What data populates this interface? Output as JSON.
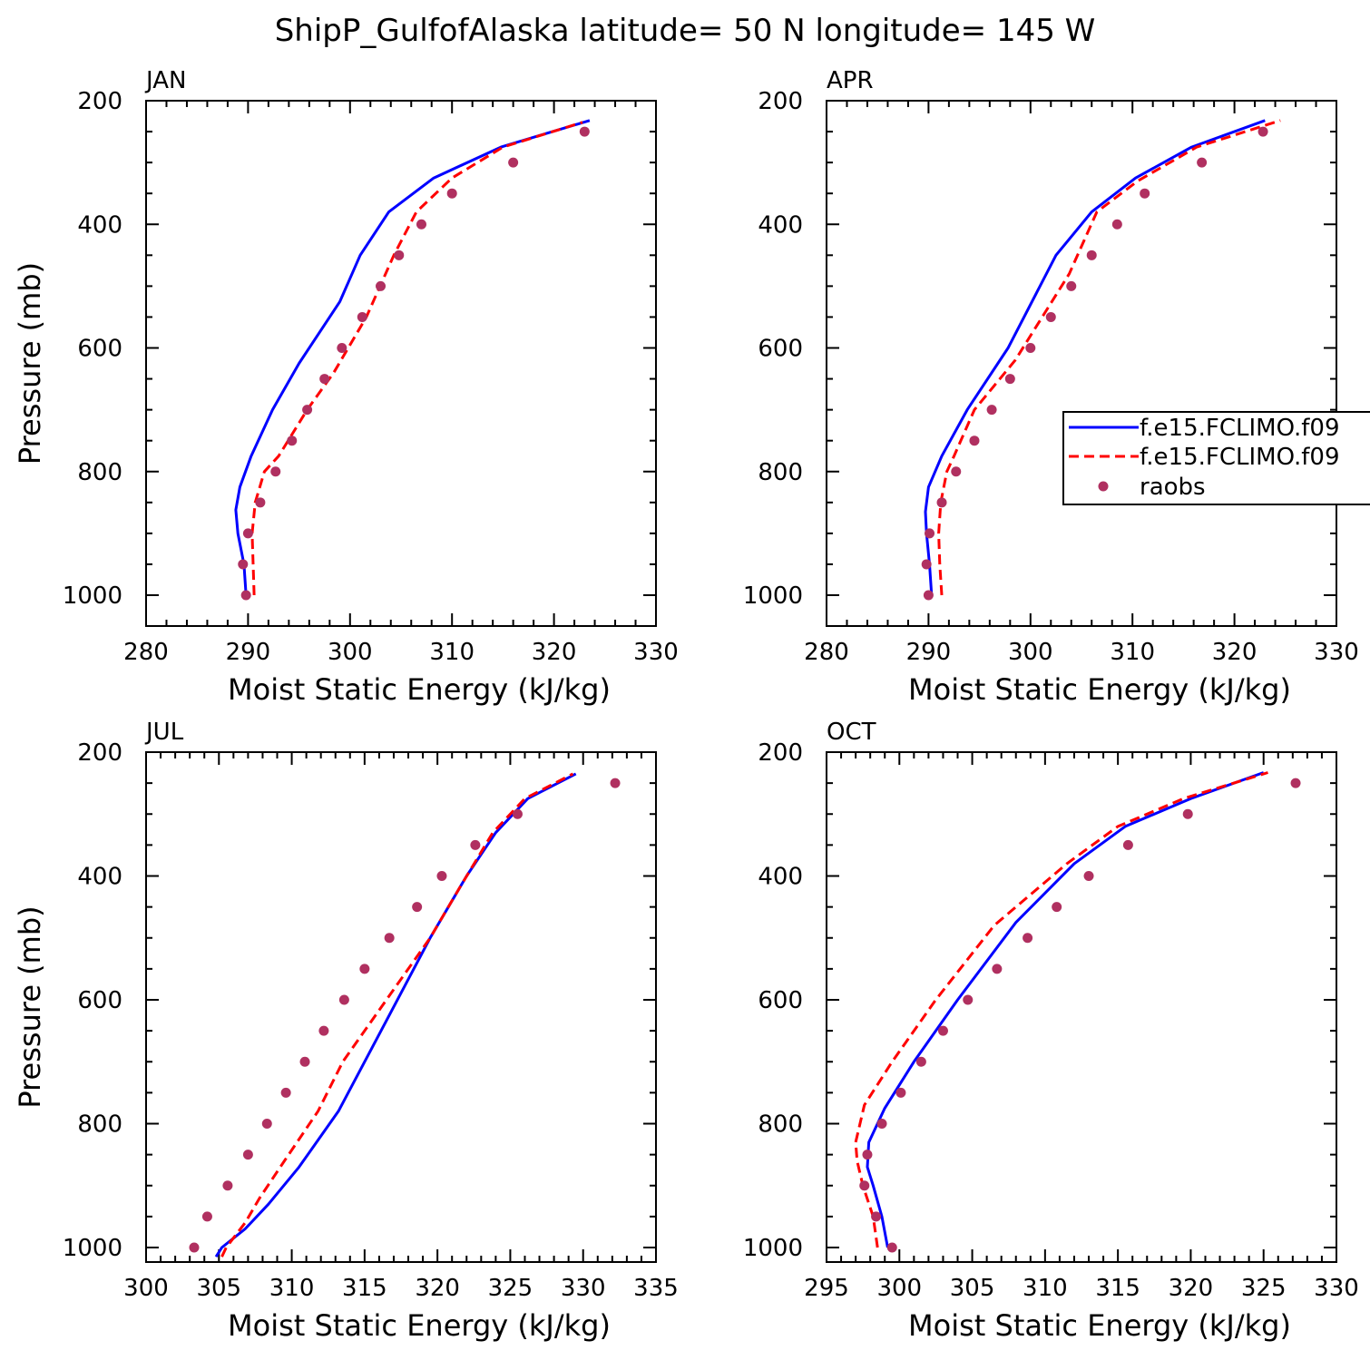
{
  "figure": {
    "title": "ShipP_GulfofAlaska  latitude= 50 N longitude= 145 W"
  },
  "colors": {
    "series_blue": "#0000ff",
    "series_red": "#ff0000",
    "raobs": "#b03060",
    "axes": "#000000"
  },
  "legend": {
    "entries": [
      "f.e15.FCLIMO.f09",
      "f.e15.FCLIMO.f09",
      "raobs"
    ]
  },
  "chart_data": [
    {
      "type": "line",
      "panel_label": "JAN",
      "xlabel": "Moist Static Energy (kJ/kg)",
      "ylabel": "Pressure (mb)",
      "xlim": [
        280,
        330
      ],
      "ylim": [
        1025,
        200
      ],
      "y_reversed": true,
      "xticks": [
        280,
        290,
        300,
        310,
        320,
        330
      ],
      "yticks": [
        200,
        400,
        600,
        800,
        1000
      ],
      "grid": false,
      "series": [
        {
          "style": "solid",
          "color": "blue",
          "x": [
            289.8,
            289.6,
            289.0,
            288.8,
            289.2,
            290.3,
            292.4,
            295.0,
            299.0,
            301.0,
            303.8,
            308.2,
            314.8,
            323.5
          ],
          "y": [
            1000,
            950,
            900,
            862,
            825,
            775,
            700,
            625,
            525,
            450,
            380,
            325,
            275,
            232
          ]
        },
        {
          "style": "dashed",
          "color": "red",
          "x": [
            290.6,
            290.5,
            290.4,
            290.7,
            291.6,
            293.0,
            295.8,
            298.4,
            301.6,
            304.3,
            306.5,
            310.0,
            315.0,
            322.8
          ],
          "y": [
            1000,
            950,
            900,
            850,
            800,
            775,
            700,
            640,
            550,
            450,
            380,
            325,
            275,
            235
          ]
        },
        {
          "style": "markers",
          "color": "raobs",
          "x": [
            289.8,
            289.5,
            290.0,
            291.2,
            292.7,
            294.3,
            295.8,
            297.5,
            299.2,
            301.2,
            303.0,
            304.8,
            307.0,
            310.0,
            316.0,
            323.0
          ],
          "y": [
            1000,
            950,
            900,
            850,
            800,
            750,
            700,
            650,
            600,
            550,
            500,
            450,
            400,
            350,
            300,
            250
          ]
        }
      ]
    },
    {
      "type": "line",
      "panel_label": "APR",
      "xlabel": "Moist Static Energy (kJ/kg)",
      "ylabel": "",
      "xlim": [
        280,
        330
      ],
      "ylim": [
        1025,
        200
      ],
      "y_reversed": true,
      "xticks": [
        280,
        290,
        300,
        310,
        320,
        330
      ],
      "yticks": [
        200,
        400,
        600,
        800,
        1000
      ],
      "grid": false,
      "series": [
        {
          "style": "solid",
          "color": "blue",
          "x": [
            290.3,
            290.1,
            289.8,
            289.7,
            290.0,
            291.3,
            293.8,
            297.8,
            302.5,
            306.0,
            310.3,
            315.8,
            323.0
          ],
          "y": [
            1000,
            950,
            900,
            865,
            825,
            775,
            700,
            600,
            450,
            380,
            325,
            275,
            232
          ]
        },
        {
          "style": "dashed",
          "color": "red",
          "x": [
            291.3,
            291.1,
            291.0,
            291.2,
            291.8,
            292.5,
            294.5,
            298.5,
            303.8,
            306.5,
            310.5,
            316.3,
            324.5
          ],
          "y": [
            1000,
            950,
            900,
            850,
            800,
            775,
            700,
            620,
            480,
            380,
            330,
            275,
            232
          ]
        },
        {
          "style": "markers",
          "color": "raobs",
          "x": [
            290.0,
            289.8,
            290.1,
            291.3,
            292.7,
            294.5,
            296.2,
            298.0,
            300.0,
            302.0,
            304.0,
            306.0,
            308.5,
            311.2,
            316.8,
            322.8
          ],
          "y": [
            1000,
            950,
            900,
            850,
            800,
            750,
            700,
            650,
            600,
            550,
            500,
            450,
            400,
            350,
            300,
            250
          ]
        }
      ]
    },
    {
      "type": "line",
      "panel_label": "JUL",
      "xlabel": "Moist Static Energy (kJ/kg)",
      "ylabel": "Pressure (mb)",
      "xlim": [
        300,
        335
      ],
      "ylim": [
        1025,
        200
      ],
      "y_reversed": true,
      "xticks": [
        300,
        305,
        310,
        315,
        320,
        325,
        330,
        335
      ],
      "yticks": [
        200,
        400,
        600,
        800,
        1000
      ],
      "grid": false,
      "series": [
        {
          "style": "solid",
          "color": "blue",
          "x": [
            304.8,
            305.2,
            306.8,
            308.4,
            310.5,
            313.2,
            316.8,
            319.5,
            322.0,
            324.0,
            326.2,
            329.5
          ],
          "y": [
            1015,
            1000,
            970,
            930,
            870,
            780,
            620,
            500,
            400,
            330,
            275,
            235
          ]
        },
        {
          "style": "dashed",
          "color": "red",
          "x": [
            305.2,
            305.5,
            306.8,
            307.8,
            309.5,
            311.8,
            313.5,
            316.5,
            319.5,
            321.5,
            323.8,
            326.0,
            329.3
          ],
          "y": [
            1015,
            1000,
            960,
            920,
            860,
            780,
            700,
            600,
            500,
            420,
            330,
            275,
            235
          ]
        },
        {
          "style": "markers",
          "color": "raobs",
          "x": [
            303.3,
            304.2,
            305.6,
            307.0,
            308.3,
            309.6,
            310.9,
            312.2,
            313.6,
            315.0,
            316.7,
            318.6,
            320.3,
            322.6,
            325.5,
            332.2
          ],
          "y": [
            1000,
            950,
            900,
            850,
            800,
            750,
            700,
            650,
            600,
            550,
            500,
            450,
            400,
            350,
            300,
            250
          ]
        }
      ]
    },
    {
      "type": "line",
      "panel_label": "OCT",
      "xlabel": "Moist Static Energy (kJ/kg)",
      "ylabel": "",
      "xlim": [
        295,
        330
      ],
      "ylim": [
        1025,
        200
      ],
      "y_reversed": true,
      "xticks": [
        295,
        300,
        305,
        310,
        315,
        320,
        325,
        330
      ],
      "yticks": [
        200,
        400,
        600,
        800,
        1000
      ],
      "grid": false,
      "series": [
        {
          "style": "solid",
          "color": "blue",
          "x": [
            299.2,
            298.8,
            298.2,
            297.8,
            297.9,
            299.0,
            301.0,
            304.0,
            308.0,
            312.0,
            315.5,
            320.0,
            325.0
          ],
          "y": [
            1000,
            950,
            900,
            870,
            830,
            775,
            700,
            600,
            475,
            380,
            320,
            275,
            233
          ]
        },
        {
          "style": "dashed",
          "color": "red",
          "x": [
            298.5,
            298.2,
            297.5,
            297.1,
            297.0,
            297.6,
            299.5,
            302.5,
            306.5,
            311.5,
            315.0,
            319.5,
            325.3
          ],
          "y": [
            1000,
            950,
            900,
            860,
            830,
            770,
            700,
            600,
            480,
            380,
            320,
            275,
            233
          ]
        },
        {
          "style": "markers",
          "color": "raobs",
          "x": [
            299.5,
            298.4,
            297.6,
            297.8,
            298.8,
            300.1,
            301.5,
            303.0,
            304.7,
            306.7,
            308.8,
            310.8,
            313.0,
            315.7,
            319.8,
            327.2
          ],
          "y": [
            1000,
            950,
            900,
            850,
            800,
            750,
            700,
            650,
            600,
            550,
            500,
            450,
            400,
            350,
            300,
            250
          ]
        }
      ]
    }
  ]
}
